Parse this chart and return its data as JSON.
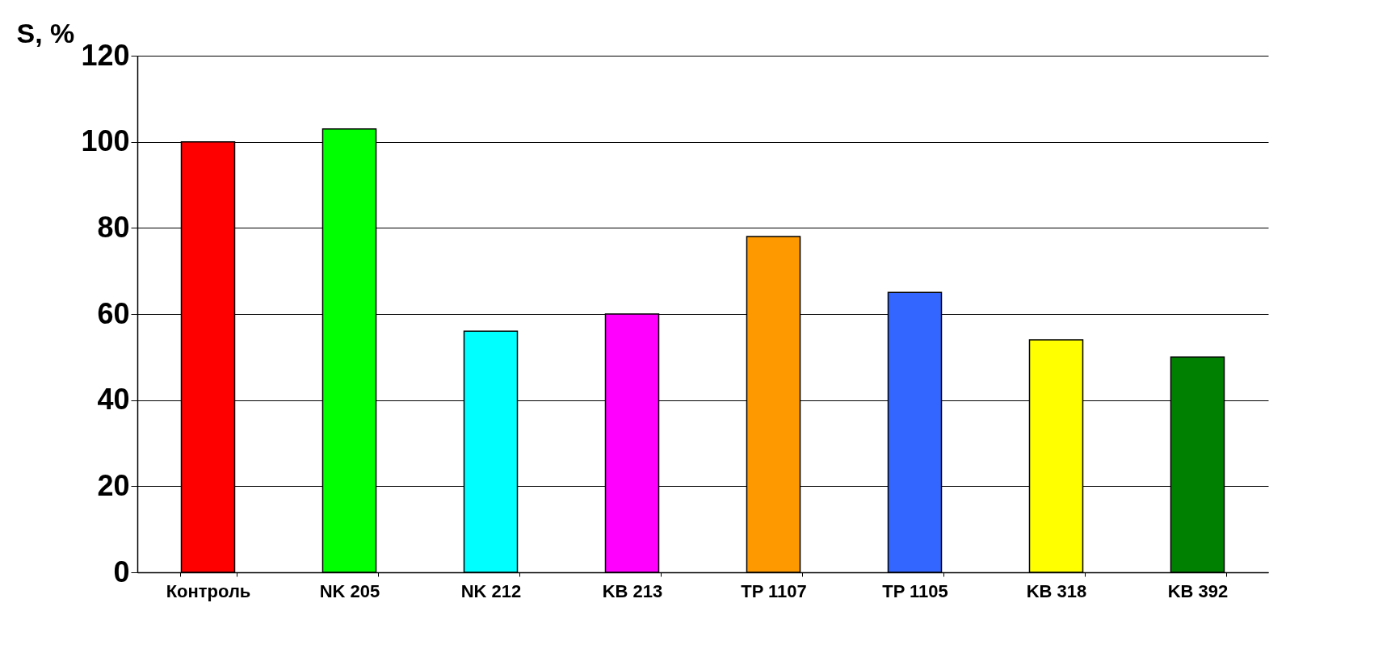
{
  "chart_data": {
    "type": "bar",
    "ylabel": "S, %",
    "categories": [
      "Контроль",
      "NK 205",
      "NK 212",
      "KB 213",
      "TP 1107",
      "TP 1105",
      "KB 318",
      "KB 392"
    ],
    "values": [
      100,
      103,
      56,
      60,
      78,
      65,
      54,
      50
    ],
    "colors": [
      "#ff0000",
      "#00ff00",
      "#00ffff",
      "#ff00ff",
      "#ff9900",
      "#3366ff",
      "#ffff00",
      "#008000"
    ],
    "ylim": [
      0,
      120
    ],
    "yticks": [
      0,
      20,
      40,
      60,
      80,
      100,
      120
    ],
    "grid": "y"
  }
}
